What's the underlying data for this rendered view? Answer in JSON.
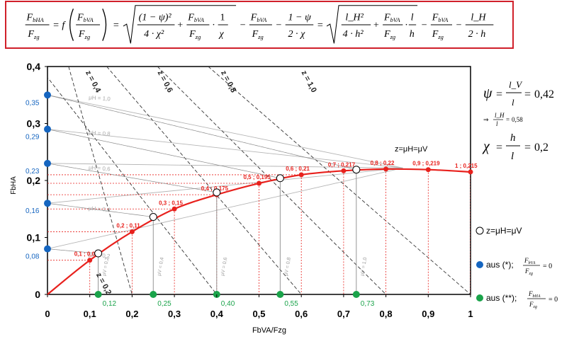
{
  "formula": {
    "lhs_num": "F",
    "lhs_num_sub": "bHA",
    "lhs_den": "F",
    "lhs_den_sub": "zg",
    "func": "f",
    "arg_num": "F",
    "arg_num_sub": "bVA",
    "arg_den": "F",
    "arg_den_sub": "zg",
    "t1_num": "(1 − ψ)²",
    "t1_den": "4 · χ²",
    "t2_num": "F",
    "t2_num_sub": "bVA",
    "t2_den": "F",
    "t2_den_sub": "zg",
    "t2_mul": "1",
    "t2_mul_den": "χ",
    "t3_num": "F",
    "t3_num_sub": "bVA",
    "t3_den": "F",
    "t3_den_sub": "zg",
    "t4_num": "1 − ψ",
    "t4_den": "2 · χ",
    "u1_num": "l_H²",
    "u1_den": "4 · h²",
    "u2_mul": "l",
    "u2_mul_den": "h",
    "u4_num": "l_H",
    "u4_den": "2 · h"
  },
  "side": {
    "psi_lhs": "ψ",
    "psi_num": "l_V",
    "psi_den": "l",
    "psi_val": "0,42",
    "arrow_eq": "⇒",
    "arrow_num": "l_H",
    "arrow_den": "l",
    "arrow_val": "0,58",
    "chi_lhs": "χ",
    "chi_num": "h",
    "chi_den": "l",
    "chi_val": "0,2"
  },
  "legend": {
    "open": "z=μH=μV",
    "blue": "aus (*);",
    "blue_f_num": "F",
    "blue_f_num_sub": "bVA",
    "blue_f_den": "F",
    "blue_f_den_sub": "zg",
    "blue_eq": "= 0",
    "green": "aus (**);",
    "green_f_num": "F",
    "green_f_num_sub": "bHA",
    "green_f_den": "F",
    "green_f_den_sub": "zg",
    "green_eq": "= 0"
  },
  "chart_data": {
    "type": "line",
    "xlabel": "FbVA/Fzg",
    "ylabel": "FbHA",
    "xlim": [
      0,
      1
    ],
    "ylim": [
      0,
      0.4
    ],
    "x_ticks": [
      "0",
      "0,1",
      "0,2",
      "0,3",
      "0,4",
      "0,5",
      "0,6",
      "0,7",
      "0,8",
      "0,9",
      "1"
    ],
    "y_ticks": [
      "0",
      "0,1",
      "0,2",
      "0,3",
      "0,4"
    ],
    "curve_label": "z=μH=μV",
    "points": [
      {
        "x": 0.1,
        "y": 0.06,
        "label": "0,1 ; 0,06"
      },
      {
        "x": 0.2,
        "y": 0.11,
        "label": "0,2 ; 0,11"
      },
      {
        "x": 0.3,
        "y": 0.15,
        "label": "0,3 ; 0,15"
      },
      {
        "x": 0.4,
        "y": 0.175,
        "label": "0,4 ; 0,175"
      },
      {
        "x": 0.5,
        "y": 0.195,
        "label": "0,5 ; 0,195"
      },
      {
        "x": 0.6,
        "y": 0.21,
        "label": "0,6 ; 0,21"
      },
      {
        "x": 0.7,
        "y": 0.217,
        "label": "0,7 ; 0,217"
      },
      {
        "x": 0.8,
        "y": 0.22,
        "label": "0,8 ; 0,22"
      },
      {
        "x": 0.9,
        "y": 0.219,
        "label": "0,9 ; 0,219"
      },
      {
        "x": 1.0,
        "y": 0.215,
        "label": "1 ; 0,215"
      }
    ],
    "curve_color": "#e8211d",
    "open_points": [
      {
        "x": 0.12,
        "y": 0.072
      },
      {
        "x": 0.25,
        "y": 0.136
      },
      {
        "x": 0.4,
        "y": 0.179
      },
      {
        "x": 0.55,
        "y": 0.204
      },
      {
        "x": 0.73,
        "y": 0.219
      }
    ],
    "blue_points": [
      {
        "y": 0.35,
        "label": "0,35"
      },
      {
        "y": 0.29,
        "label": "0,29"
      },
      {
        "y": 0.23,
        "label": "0,23"
      },
      {
        "y": 0.16,
        "label": "0,16"
      },
      {
        "y": 0.08,
        "label": "0,08"
      }
    ],
    "green_points": [
      {
        "x": 0.12,
        "label": "0,12"
      },
      {
        "x": 0.25,
        "label": "0,25"
      },
      {
        "x": 0.4,
        "label": "0,40"
      },
      {
        "x": 0.55,
        "label": "0,55"
      },
      {
        "x": 0.73,
        "label": "0,73"
      }
    ],
    "blue_color": "#1565c0",
    "green_color": "#1aa34a",
    "z_lines": [
      {
        "label": "z = 0,2",
        "x0": 0.2,
        "x1": 0.05
      },
      {
        "label": "z = 0,4",
        "x0": 0.4,
        "x1": -0.02
      },
      {
        "label": "z = 0,6",
        "x0": 0.6,
        "x1": 0.14
      },
      {
        "label": "z = 0,8",
        "x0": 0.8,
        "x1": 0.26
      },
      {
        "label": "z = 1,0",
        "x0": 1.0,
        "x1": 0.38
      }
    ],
    "mu_lines": [
      {
        "label": "μH = 1,0",
        "y": 0.35
      },
      {
        "label": "μH = 0,8",
        "y": 0.29
      },
      {
        "label": "μH = 0,6",
        "y": 0.23
      },
      {
        "label": "μH = 0,4",
        "y": 0.16
      },
      {
        "label": "μH = 0,2",
        "y": 0.08
      }
    ],
    "mu_v_labels": [
      "μV = 0,2",
      "μV = 0,4",
      "μV = 0,6",
      "μV = 0,8",
      "μV = 1,0"
    ]
  }
}
